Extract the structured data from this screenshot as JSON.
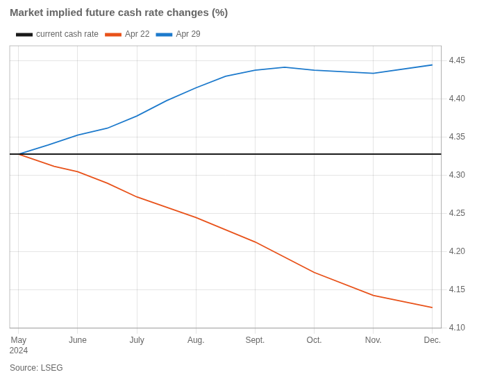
{
  "chart_data": {
    "type": "line",
    "title": "Market implied future cash rate changes (%)",
    "annotations": [
      "Source: LSEG"
    ],
    "series": [
      {
        "name": "Apr 22",
        "color": "#E8521A",
        "x": [
          0,
          0.6,
          1.0,
          1.5,
          2.0,
          3.0,
          4.0,
          5.0,
          6.0,
          7.0
        ],
        "values": [
          4.328,
          4.312,
          4.305,
          4.29,
          4.272,
          4.245,
          4.213,
          4.173,
          4.143,
          4.127
        ]
      },
      {
        "name": "Apr 29",
        "color": "#1D7ACC",
        "x": [
          0,
          0.5,
          1.0,
          1.5,
          2.0,
          2.5,
          3.0,
          3.5,
          4.0,
          4.5,
          5.0,
          6.0,
          7.0
        ],
        "values": [
          4.328,
          4.34,
          4.353,
          4.362,
          4.378,
          4.398,
          4.415,
          4.43,
          4.438,
          4.442,
          4.438,
          4.434,
          4.445
        ]
      },
      {
        "name": "current cash rate",
        "type": "hline",
        "color": "#1a1a1a",
        "values": [
          4.328
        ]
      }
    ],
    "xlim": [
      -0.15,
      7.15
    ],
    "xticks": [
      {
        "value": 0,
        "label": "May\n2024"
      },
      {
        "value": 1,
        "label": "June"
      },
      {
        "value": 2,
        "label": "July"
      },
      {
        "value": 3,
        "label": "Aug."
      },
      {
        "value": 4,
        "label": "Sept."
      },
      {
        "value": 5,
        "label": "Oct."
      },
      {
        "value": 6,
        "label": "Nov."
      },
      {
        "value": 7,
        "label": "Dec."
      }
    ],
    "ylim": [
      4.1,
      4.47
    ],
    "yticks": [
      {
        "value": 4.1,
        "label": "4.10"
      },
      4.15,
      {
        "value": 4.2,
        "label": "4.20"
      },
      4.25,
      {
        "value": 4.3,
        "label": "4.30"
      },
      4.35,
      {
        "value": 4.4,
        "label": "4.40"
      },
      4.45
    ],
    "grid": true,
    "legend": "upper left"
  }
}
